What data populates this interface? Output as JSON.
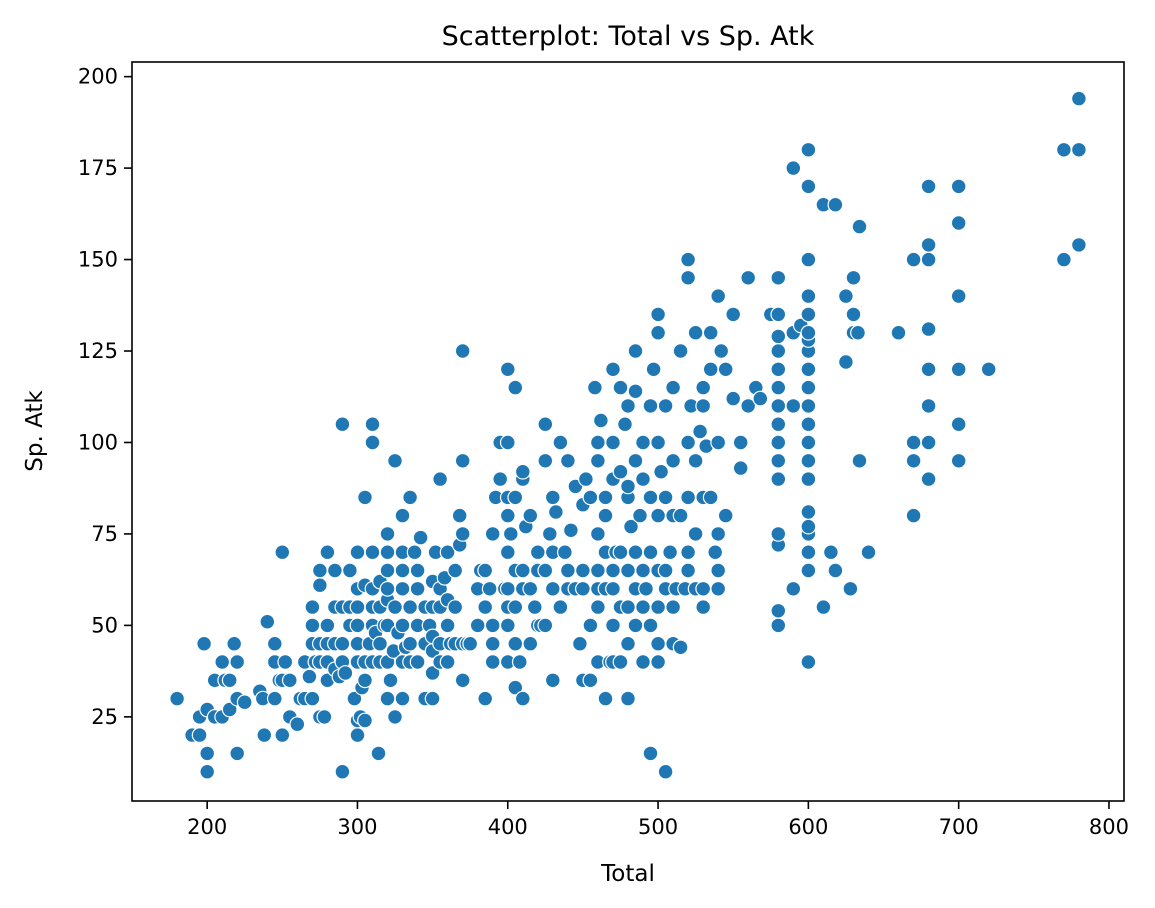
{
  "chart_data": {
    "type": "scatter",
    "title": "Scatterplot: Total vs Sp. Atk",
    "xlabel": "Total",
    "ylabel": "Sp. Atk",
    "xlim": [
      150,
      810
    ],
    "ylim": [
      2,
      204
    ],
    "xticks": [
      200,
      300,
      400,
      500,
      600,
      700,
      800
    ],
    "yticks": [
      25,
      50,
      75,
      100,
      125,
      150,
      175,
      200
    ],
    "grid": false,
    "legend": "none",
    "marker_color": "#1f77b4",
    "points": [
      [
        180,
        30
      ],
      [
        190,
        20
      ],
      [
        195,
        25
      ],
      [
        195,
        20
      ],
      [
        198,
        45
      ],
      [
        200,
        10
      ],
      [
        200,
        15
      ],
      [
        200,
        27
      ],
      [
        205,
        25
      ],
      [
        205,
        35
      ],
      [
        210,
        40
      ],
      [
        210,
        25
      ],
      [
        212,
        35
      ],
      [
        215,
        27
      ],
      [
        215,
        35
      ],
      [
        218,
        45
      ],
      [
        220,
        15
      ],
      [
        220,
        40
      ],
      [
        220,
        30
      ],
      [
        225,
        29
      ],
      [
        235,
        32
      ],
      [
        237,
        30
      ],
      [
        238,
        20
      ],
      [
        240,
        51
      ],
      [
        245,
        45
      ],
      [
        245,
        40
      ],
      [
        245,
        30
      ],
      [
        248,
        35
      ],
      [
        250,
        70
      ],
      [
        250,
        20
      ],
      [
        250,
        35
      ],
      [
        252,
        40
      ],
      [
        255,
        25
      ],
      [
        255,
        35
      ],
      [
        260,
        23
      ],
      [
        262,
        30
      ],
      [
        265,
        40
      ],
      [
        265,
        30
      ],
      [
        268,
        36
      ],
      [
        270,
        30
      ],
      [
        270,
        45
      ],
      [
        270,
        50
      ],
      [
        270,
        55
      ],
      [
        272,
        40
      ],
      [
        275,
        25
      ],
      [
        275,
        40
      ],
      [
        275,
        45
      ],
      [
        275,
        65
      ],
      [
        275,
        61
      ],
      [
        278,
        25
      ],
      [
        280,
        35
      ],
      [
        280,
        40
      ],
      [
        280,
        45
      ],
      [
        280,
        50
      ],
      [
        280,
        70
      ],
      [
        285,
        38
      ],
      [
        285,
        45
      ],
      [
        285,
        55
      ],
      [
        285,
        65
      ],
      [
        288,
        36
      ],
      [
        290,
        10
      ],
      [
        290,
        40
      ],
      [
        290,
        45
      ],
      [
        290,
        55
      ],
      [
        290,
        105
      ],
      [
        292,
        37
      ],
      [
        295,
        50
      ],
      [
        295,
        55
      ],
      [
        295,
        65
      ],
      [
        298,
        30
      ],
      [
        300,
        20
      ],
      [
        300,
        24
      ],
      [
        300,
        40
      ],
      [
        300,
        45
      ],
      [
        300,
        50
      ],
      [
        300,
        55
      ],
      [
        300,
        60
      ],
      [
        300,
        70
      ],
      [
        302,
        25
      ],
      [
        303,
        33
      ],
      [
        305,
        35
      ],
      [
        305,
        24
      ],
      [
        305,
        40
      ],
      [
        305,
        85
      ],
      [
        305,
        61
      ],
      [
        308,
        45
      ],
      [
        310,
        40
      ],
      [
        310,
        50
      ],
      [
        310,
        55
      ],
      [
        310,
        60
      ],
      [
        310,
        70
      ],
      [
        310,
        100
      ],
      [
        310,
        105
      ],
      [
        312,
        48
      ],
      [
        314,
        15
      ],
      [
        315,
        40
      ],
      [
        315,
        45
      ],
      [
        315,
        55
      ],
      [
        315,
        62
      ],
      [
        318,
        50
      ],
      [
        320,
        30
      ],
      [
        320,
        40
      ],
      [
        320,
        50
      ],
      [
        320,
        57
      ],
      [
        320,
        60
      ],
      [
        320,
        65
      ],
      [
        320,
        70
      ],
      [
        320,
        75
      ],
      [
        322,
        35
      ],
      [
        324,
        43
      ],
      [
        325,
        25
      ],
      [
        325,
        55
      ],
      [
        325,
        95
      ],
      [
        327,
        48
      ],
      [
        330,
        30
      ],
      [
        330,
        40
      ],
      [
        330,
        50
      ],
      [
        330,
        60
      ],
      [
        330,
        65
      ],
      [
        330,
        70
      ],
      [
        330,
        80
      ],
      [
        332,
        44
      ],
      [
        335,
        40
      ],
      [
        335,
        45
      ],
      [
        335,
        55
      ],
      [
        335,
        85
      ],
      [
        338,
        70
      ],
      [
        340,
        40
      ],
      [
        340,
        50
      ],
      [
        340,
        60
      ],
      [
        340,
        65
      ],
      [
        342,
        74
      ],
      [
        345,
        30
      ],
      [
        345,
        45
      ],
      [
        345,
        55
      ],
      [
        348,
        50
      ],
      [
        350,
        30
      ],
      [
        350,
        37
      ],
      [
        350,
        43
      ],
      [
        350,
        47
      ],
      [
        350,
        55
      ],
      [
        350,
        62
      ],
      [
        352,
        70
      ],
      [
        355,
        40
      ],
      [
        355,
        45
      ],
      [
        355,
        55
      ],
      [
        355,
        60
      ],
      [
        355,
        90
      ],
      [
        358,
        63
      ],
      [
        360,
        40
      ],
      [
        360,
        50
      ],
      [
        360,
        57
      ],
      [
        360,
        70
      ],
      [
        362,
        45
      ],
      [
        365,
        45
      ],
      [
        365,
        55
      ],
      [
        365,
        65
      ],
      [
        368,
        80
      ],
      [
        368,
        72
      ],
      [
        370,
        35
      ],
      [
        370,
        45
      ],
      [
        370,
        75
      ],
      [
        370,
        95
      ],
      [
        370,
        125
      ],
      [
        373,
        45
      ],
      [
        375,
        45
      ],
      [
        380,
        50
      ],
      [
        380,
        60
      ],
      [
        382,
        65
      ],
      [
        385,
        30
      ],
      [
        385,
        55
      ],
      [
        385,
        65
      ],
      [
        388,
        60
      ],
      [
        390,
        45
      ],
      [
        390,
        40
      ],
      [
        390,
        50
      ],
      [
        390,
        75
      ],
      [
        392,
        85
      ],
      [
        395,
        90
      ],
      [
        395,
        100
      ],
      [
        398,
        60
      ],
      [
        400,
        40
      ],
      [
        400,
        50
      ],
      [
        400,
        55
      ],
      [
        400,
        60
      ],
      [
        400,
        70
      ],
      [
        400,
        80
      ],
      [
        400,
        85
      ],
      [
        400,
        100
      ],
      [
        400,
        120
      ],
      [
        402,
        75
      ],
      [
        405,
        33
      ],
      [
        405,
        45
      ],
      [
        405,
        55
      ],
      [
        405,
        65
      ],
      [
        405,
        85
      ],
      [
        405,
        115
      ],
      [
        408,
        40
      ],
      [
        410,
        30
      ],
      [
        410,
        60
      ],
      [
        410,
        65
      ],
      [
        410,
        90
      ],
      [
        410,
        92
      ],
      [
        412,
        77
      ],
      [
        415,
        45
      ],
      [
        415,
        60
      ],
      [
        415,
        80
      ],
      [
        418,
        55
      ],
      [
        420,
        50
      ],
      [
        420,
        70
      ],
      [
        420,
        65
      ],
      [
        422,
        50
      ],
      [
        425,
        50
      ],
      [
        425,
        65
      ],
      [
        425,
        95
      ],
      [
        425,
        105
      ],
      [
        428,
        75
      ],
      [
        430,
        35
      ],
      [
        430,
        60
      ],
      [
        430,
        70
      ],
      [
        430,
        85
      ],
      [
        432,
        81
      ],
      [
        435,
        55
      ],
      [
        435,
        100
      ],
      [
        438,
        70
      ],
      [
        440,
        60
      ],
      [
        440,
        65
      ],
      [
        440,
        95
      ],
      [
        442,
        76
      ],
      [
        445,
        60
      ],
      [
        445,
        88
      ],
      [
        448,
        45
      ],
      [
        450,
        35
      ],
      [
        450,
        60
      ],
      [
        450,
        65
      ],
      [
        450,
        83
      ],
      [
        452,
        90
      ],
      [
        455,
        35
      ],
      [
        455,
        50
      ],
      [
        455,
        85
      ],
      [
        458,
        115
      ],
      [
        460,
        40
      ],
      [
        460,
        55
      ],
      [
        460,
        60
      ],
      [
        460,
        65
      ],
      [
        460,
        75
      ],
      [
        460,
        95
      ],
      [
        460,
        100
      ],
      [
        462,
        106
      ],
      [
        465,
        30
      ],
      [
        465,
        60
      ],
      [
        465,
        70
      ],
      [
        465,
        80
      ],
      [
        465,
        85
      ],
      [
        468,
        40
      ],
      [
        470,
        40
      ],
      [
        470,
        50
      ],
      [
        470,
        60
      ],
      [
        470,
        65
      ],
      [
        470,
        90
      ],
      [
        470,
        100
      ],
      [
        470,
        120
      ],
      [
        472,
        70
      ],
      [
        475,
        40
      ],
      [
        475,
        55
      ],
      [
        475,
        70
      ],
      [
        475,
        92
      ],
      [
        475,
        115
      ],
      [
        478,
        105
      ],
      [
        480,
        30
      ],
      [
        480,
        45
      ],
      [
        480,
        55
      ],
      [
        480,
        65
      ],
      [
        480,
        85
      ],
      [
        480,
        88
      ],
      [
        480,
        110
      ],
      [
        482,
        77
      ],
      [
        485,
        50
      ],
      [
        485,
        60
      ],
      [
        485,
        70
      ],
      [
        485,
        95
      ],
      [
        485,
        114
      ],
      [
        485,
        125
      ],
      [
        488,
        80
      ],
      [
        490,
        40
      ],
      [
        490,
        55
      ],
      [
        490,
        65
      ],
      [
        490,
        90
      ],
      [
        490,
        100
      ],
      [
        492,
        60
      ],
      [
        495,
        15
      ],
      [
        495,
        50
      ],
      [
        495,
        70
      ],
      [
        495,
        85
      ],
      [
        495,
        110
      ],
      [
        497,
        120
      ],
      [
        500,
        40
      ],
      [
        500,
        45
      ],
      [
        500,
        55
      ],
      [
        500,
        65
      ],
      [
        500,
        80
      ],
      [
        500,
        100
      ],
      [
        500,
        130
      ],
      [
        500,
        135
      ],
      [
        502,
        92
      ],
      [
        505,
        10
      ],
      [
        505,
        60
      ],
      [
        505,
        65
      ],
      [
        505,
        85
      ],
      [
        505,
        110
      ],
      [
        508,
        70
      ],
      [
        510,
        45
      ],
      [
        510,
        55
      ],
      [
        510,
        80
      ],
      [
        510,
        95
      ],
      [
        510,
        115
      ],
      [
        512,
        60
      ],
      [
        515,
        44
      ],
      [
        515,
        80
      ],
      [
        515,
        125
      ],
      [
        518,
        60
      ],
      [
        520,
        65
      ],
      [
        520,
        70
      ],
      [
        520,
        85
      ],
      [
        520,
        100
      ],
      [
        520,
        145
      ],
      [
        520,
        150
      ],
      [
        522,
        110
      ],
      [
        525,
        60
      ],
      [
        525,
        75
      ],
      [
        525,
        95
      ],
      [
        525,
        130
      ],
      [
        528,
        103
      ],
      [
        530,
        55
      ],
      [
        530,
        60
      ],
      [
        530,
        85
      ],
      [
        530,
        110
      ],
      [
        530,
        115
      ],
      [
        532,
        99
      ],
      [
        535,
        85
      ],
      [
        535,
        120
      ],
      [
        535,
        130
      ],
      [
        538,
        70
      ],
      [
        540,
        60
      ],
      [
        540,
        65
      ],
      [
        540,
        75
      ],
      [
        540,
        100
      ],
      [
        540,
        140
      ],
      [
        542,
        125
      ],
      [
        545,
        80
      ],
      [
        545,
        120
      ],
      [
        550,
        135
      ],
      [
        550,
        112
      ],
      [
        555,
        93
      ],
      [
        555,
        100
      ],
      [
        560,
        145
      ],
      [
        560,
        110
      ],
      [
        565,
        115
      ],
      [
        568,
        112
      ],
      [
        575,
        135
      ],
      [
        580,
        50
      ],
      [
        580,
        54
      ],
      [
        580,
        72
      ],
      [
        580,
        75
      ],
      [
        580,
        90
      ],
      [
        580,
        95
      ],
      [
        580,
        100
      ],
      [
        580,
        105
      ],
      [
        580,
        110
      ],
      [
        580,
        115
      ],
      [
        580,
        120
      ],
      [
        580,
        125
      ],
      [
        580,
        129
      ],
      [
        580,
        135
      ],
      [
        580,
        145
      ],
      [
        590,
        60
      ],
      [
        590,
        110
      ],
      [
        590,
        130
      ],
      [
        590,
        175
      ],
      [
        595,
        132
      ],
      [
        600,
        40
      ],
      [
        600,
        65
      ],
      [
        600,
        70
      ],
      [
        600,
        75
      ],
      [
        600,
        77
      ],
      [
        600,
        81
      ],
      [
        600,
        90
      ],
      [
        600,
        95
      ],
      [
        600,
        100
      ],
      [
        600,
        105
      ],
      [
        600,
        110
      ],
      [
        600,
        115
      ],
      [
        600,
        120
      ],
      [
        600,
        125
      ],
      [
        600,
        128
      ],
      [
        600,
        130
      ],
      [
        600,
        135
      ],
      [
        600,
        140
      ],
      [
        600,
        150
      ],
      [
        600,
        170
      ],
      [
        600,
        180
      ],
      [
        610,
        55
      ],
      [
        610,
        165
      ],
      [
        615,
        70
      ],
      [
        618,
        65
      ],
      [
        618,
        165
      ],
      [
        625,
        122
      ],
      [
        625,
        140
      ],
      [
        628,
        60
      ],
      [
        630,
        130
      ],
      [
        630,
        135
      ],
      [
        630,
        145
      ],
      [
        633,
        130
      ],
      [
        634,
        159
      ],
      [
        634,
        95
      ],
      [
        640,
        70
      ],
      [
        660,
        130
      ],
      [
        670,
        80
      ],
      [
        670,
        95
      ],
      [
        670,
        100
      ],
      [
        670,
        150
      ],
      [
        680,
        90
      ],
      [
        680,
        100
      ],
      [
        680,
        110
      ],
      [
        680,
        120
      ],
      [
        680,
        131
      ],
      [
        680,
        150
      ],
      [
        680,
        154
      ],
      [
        680,
        170
      ],
      [
        700,
        95
      ],
      [
        700,
        105
      ],
      [
        700,
        120
      ],
      [
        700,
        140
      ],
      [
        700,
        160
      ],
      [
        700,
        170
      ],
      [
        720,
        120
      ],
      [
        770,
        150
      ],
      [
        770,
        180
      ],
      [
        780,
        154
      ],
      [
        780,
        180
      ],
      [
        780,
        194
      ]
    ]
  }
}
